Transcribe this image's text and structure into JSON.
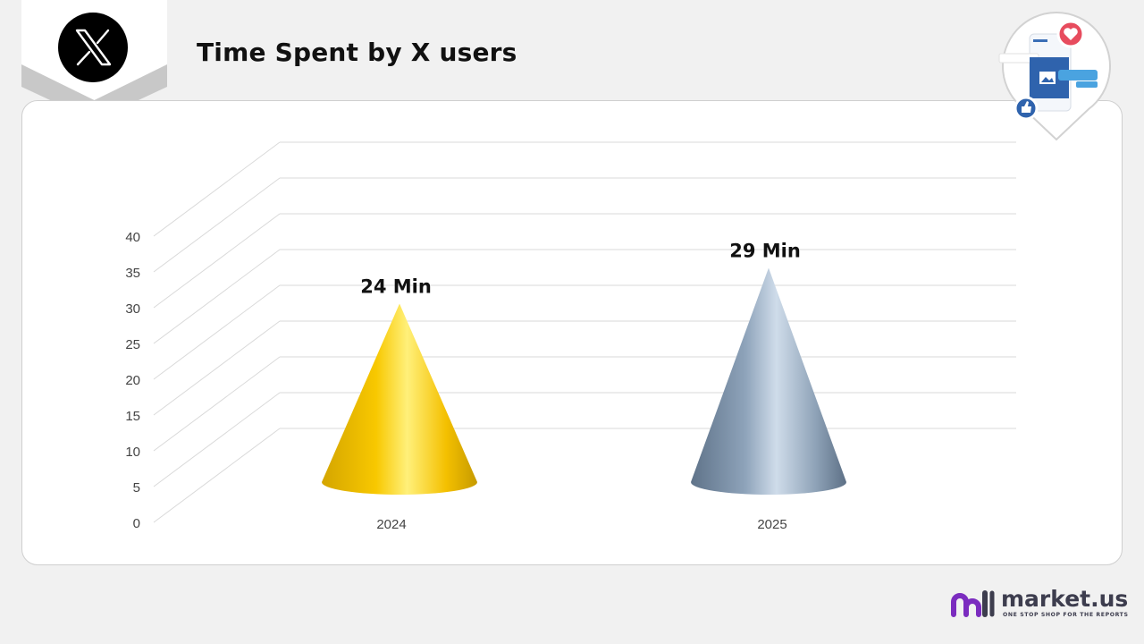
{
  "header": {
    "title": "Time Spent by X users",
    "brand_icon": "x-logo-icon"
  },
  "decoration": {
    "pin_icon": "social-media-pin-icon"
  },
  "chart_data": {
    "type": "bar",
    "shape": "cone",
    "categories": [
      "2024",
      "2025"
    ],
    "values": [
      24,
      29
    ],
    "data_labels": [
      "24 Min",
      "29 Min"
    ],
    "colors": [
      "#f5c400",
      "#8ea3ba"
    ],
    "yticks": [
      "0",
      "5",
      "10",
      "15",
      "20",
      "25",
      "30",
      "35",
      "40"
    ],
    "ylim": [
      0,
      40
    ],
    "grid": true,
    "legend": "none"
  },
  "footer": {
    "brand_name": "market.us",
    "brand_tagline": "ONE STOP SHOP FOR THE REPORTS",
    "brand_colors": [
      "#7b2cbf",
      "#3d3d4e"
    ]
  }
}
